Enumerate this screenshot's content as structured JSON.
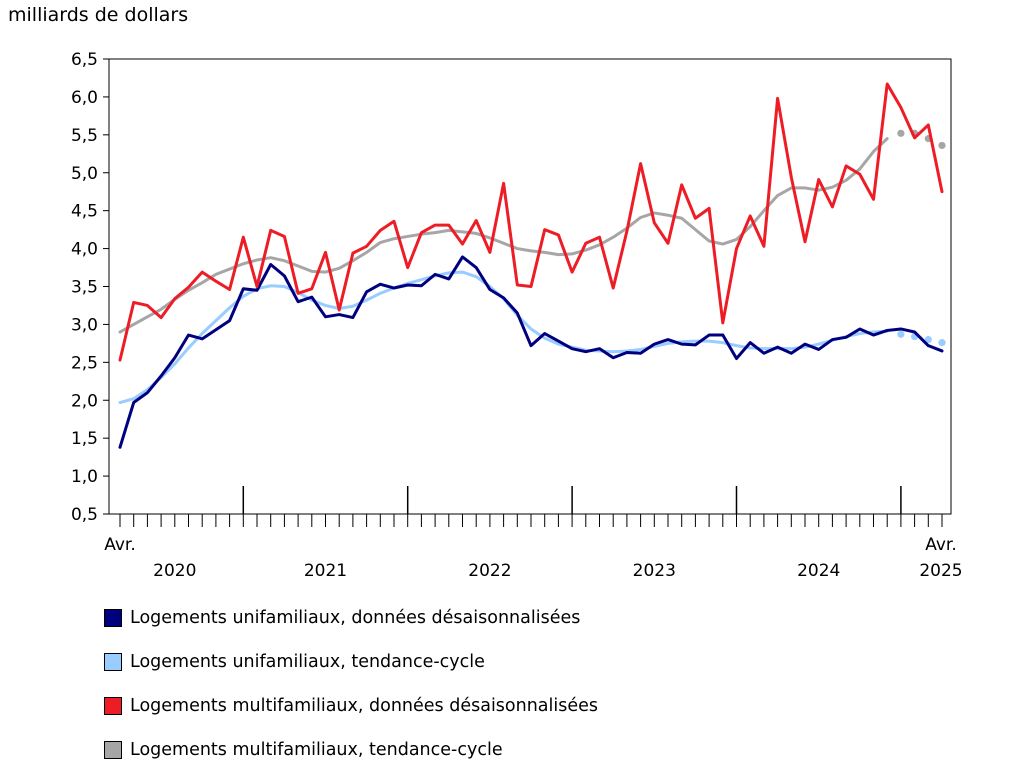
{
  "unit_label": "milliards de dollars",
  "colors": {
    "uni_sa": "#00007f",
    "uni_trend": "#99ccff",
    "multi_sa": "#ee1c25",
    "multi_trend": "#a6a6a6"
  },
  "chart_data": {
    "type": "line",
    "title": "",
    "ylabel": "milliards de dollars",
    "xlabel": "",
    "ylim": [
      0.5,
      6.5
    ],
    "yticks": [
      "0,5",
      "1,0",
      "1,5",
      "2,0",
      "2,5",
      "3,0",
      "3,5",
      "4,0",
      "4,5",
      "5,0",
      "5,5",
      "6,0",
      "6,5"
    ],
    "ytick_values": [
      0.5,
      1.0,
      1.5,
      2.0,
      2.5,
      3.0,
      3.5,
      4.0,
      4.5,
      5.0,
      5.5,
      6.0,
      6.5
    ],
    "x_start": "Avr. 2020",
    "x_end": "Avr. 2025",
    "n_months": 61,
    "year_labels": [
      {
        "label": "2020",
        "month_index": 4
      },
      {
        "label": "2021",
        "month_index": 15
      },
      {
        "label": "2022",
        "month_index": 27
      },
      {
        "label": "2023",
        "month_index": 39
      },
      {
        "label": "2024",
        "month_index": 51
      },
      {
        "label": "2025",
        "month_index": 60
      }
    ],
    "year_boundaries": [
      9,
      21,
      33,
      45,
      57
    ],
    "start_label": "Avr.",
    "end_label": "Avr.",
    "trend_dotted_from_index": 57,
    "series": [
      {
        "name": "Logements unifamiliaux, données désaisonnalisées",
        "color_key": "uni_sa",
        "style": "solid",
        "values": [
          1.38,
          1.97,
          2.1,
          2.32,
          2.56,
          2.86,
          2.81,
          2.93,
          3.05,
          3.47,
          3.45,
          3.79,
          3.64,
          3.3,
          3.36,
          3.1,
          3.13,
          3.09,
          3.43,
          3.53,
          3.48,
          3.52,
          3.51,
          3.66,
          3.6,
          3.89,
          3.75,
          3.46,
          3.35,
          3.15,
          2.72,
          2.88,
          2.78,
          2.68,
          2.64,
          2.68,
          2.56,
          2.63,
          2.62,
          2.74,
          2.8,
          2.74,
          2.73,
          2.86,
          2.86,
          2.55,
          2.76,
          2.62,
          2.7,
          2.62,
          2.74,
          2.67,
          2.8,
          2.83,
          2.94,
          2.86,
          2.92,
          2.94,
          2.9,
          2.72,
          2.65
        ]
      },
      {
        "name": "Logements unifamiliaux, tendance-cycle",
        "color_key": "uni_trend",
        "style": "solid",
        "values": [
          1.97,
          2.02,
          2.14,
          2.3,
          2.48,
          2.69,
          2.88,
          3.05,
          3.22,
          3.37,
          3.47,
          3.51,
          3.5,
          3.42,
          3.32,
          3.25,
          3.21,
          3.24,
          3.32,
          3.41,
          3.48,
          3.54,
          3.59,
          3.64,
          3.68,
          3.69,
          3.63,
          3.5,
          3.34,
          3.12,
          2.94,
          2.82,
          2.74,
          2.7,
          2.66,
          2.65,
          2.64,
          2.65,
          2.67,
          2.71,
          2.75,
          2.77,
          2.78,
          2.78,
          2.76,
          2.72,
          2.69,
          2.68,
          2.68,
          2.68,
          2.7,
          2.74,
          2.79,
          2.84,
          2.88,
          2.9,
          2.91,
          2.87,
          2.84,
          2.8,
          2.76
        ]
      },
      {
        "name": "Logements multifamiliaux, données désaisonnalisées",
        "color_key": "multi_sa",
        "style": "solid",
        "values": [
          2.53,
          3.29,
          3.25,
          3.09,
          3.34,
          3.49,
          3.69,
          3.57,
          3.46,
          4.15,
          3.5,
          4.24,
          4.16,
          3.41,
          3.47,
          3.95,
          3.19,
          3.94,
          4.03,
          4.24,
          4.36,
          3.75,
          4.21,
          4.31,
          4.31,
          4.06,
          4.37,
          3.95,
          4.86,
          3.52,
          3.5,
          4.25,
          4.18,
          3.69,
          4.07,
          4.15,
          3.48,
          4.23,
          5.12,
          4.34,
          4.07,
          4.84,
          4.4,
          4.53,
          3.02,
          4.0,
          4.43,
          4.03,
          5.98,
          4.94,
          4.09,
          4.91,
          4.55,
          5.09,
          4.98,
          4.65,
          6.17,
          5.86,
          5.46,
          5.63,
          4.75
        ]
      },
      {
        "name": "Logements multifamiliaux, tendance-cycle",
        "color_key": "multi_trend",
        "style": "solid",
        "values": [
          2.9,
          3.0,
          3.1,
          3.2,
          3.33,
          3.45,
          3.55,
          3.66,
          3.73,
          3.8,
          3.85,
          3.88,
          3.84,
          3.77,
          3.7,
          3.69,
          3.74,
          3.84,
          3.95,
          4.08,
          4.13,
          4.16,
          4.19,
          4.21,
          4.24,
          4.22,
          4.2,
          4.14,
          4.07,
          4.0,
          3.97,
          3.95,
          3.92,
          3.93,
          3.98,
          4.05,
          4.15,
          4.27,
          4.41,
          4.47,
          4.44,
          4.4,
          4.25,
          4.1,
          4.06,
          4.12,
          4.29,
          4.5,
          4.7,
          4.8,
          4.8,
          4.77,
          4.81,
          4.9,
          5.05,
          5.28,
          5.45,
          5.52,
          5.52,
          5.45,
          5.36
        ]
      }
    ]
  },
  "legend": [
    {
      "label": "Logements unifamiliaux, données désaisonnalisées",
      "color_key": "uni_sa"
    },
    {
      "label": "Logements unifamiliaux, tendance-cycle",
      "color_key": "uni_trend"
    },
    {
      "label": "Logements multifamiliaux, données désaisonnalisées",
      "color_key": "multi_sa"
    },
    {
      "label": "Logements multifamiliaux, tendance-cycle",
      "color_key": "multi_trend"
    }
  ]
}
